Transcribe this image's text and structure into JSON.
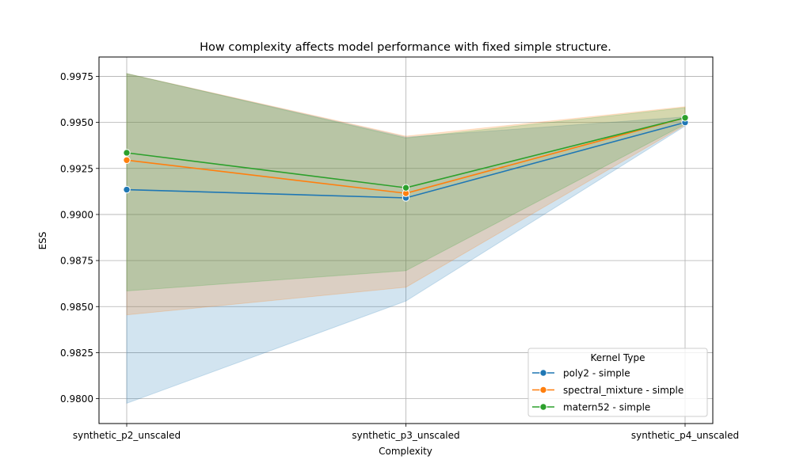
{
  "chart_data": {
    "type": "line",
    "title": "How complexity affects model performance with fixed simple structure.",
    "xlabel": "Complexity",
    "ylabel": "ESS",
    "categories": [
      "synthetic_p2_unscaled",
      "synthetic_p3_unscaled",
      "synthetic_p4_unscaled"
    ],
    "ylim": [
      0.97865,
      0.99855
    ],
    "yticks": [
      0.98,
      0.9825,
      0.985,
      0.9875,
      0.99,
      0.9925,
      0.995,
      0.9975
    ],
    "ytick_labels": [
      "0.9800",
      "0.9825",
      "0.9850",
      "0.9875",
      "0.9900",
      "0.9925",
      "0.9950",
      "0.9975"
    ],
    "grid": true,
    "legend": {
      "title": "Kernel Type",
      "placement": "lower right"
    },
    "series": [
      {
        "name": "poly2 - simple",
        "color": "#1f77b4",
        "values": [
          0.99135,
          0.9909,
          0.995
        ],
        "ci_low": [
          0.97975,
          0.9853,
          0.9948
        ],
        "ci_high": [
          0.99765,
          0.9942,
          0.9953
        ]
      },
      {
        "name": "spectral_mixture - simple",
        "color": "#ff7f0e",
        "values": [
          0.99295,
          0.99115,
          0.99525
        ],
        "ci_low": [
          0.98455,
          0.98605,
          0.99485
        ],
        "ci_high": [
          0.99765,
          0.99425,
          0.99585
        ]
      },
      {
        "name": "matern52 - simple",
        "color": "#2ca02c",
        "values": [
          0.99335,
          0.99145,
          0.99525
        ],
        "ci_low": [
          0.98585,
          0.98695,
          0.9949
        ],
        "ci_high": [
          0.99765,
          0.99415,
          0.9958
        ]
      }
    ]
  }
}
